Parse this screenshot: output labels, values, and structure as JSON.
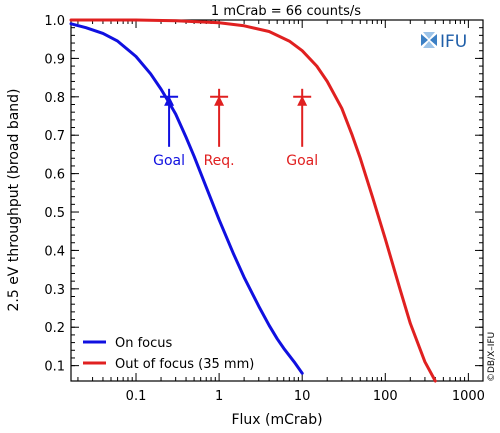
{
  "chart_data": {
    "type": "line",
    "title": "1 mCrab = 66 counts/s",
    "xlabel": "Flux (mCrab)",
    "ylabel": "2.5 eV throughput (broad band)",
    "xscale": "log",
    "xlim": [
      0.0165,
      1500
    ],
    "ylim": [
      0.06,
      1.0
    ],
    "x_ticks": [
      {
        "value": 0.1,
        "label": "0.1"
      },
      {
        "value": 1,
        "label": "1"
      },
      {
        "value": 10,
        "label": "10"
      },
      {
        "value": 100,
        "label": "100"
      },
      {
        "value": 1000,
        "label": "1000"
      }
    ],
    "y_ticks": [
      {
        "value": 0.1,
        "label": "0.1"
      },
      {
        "value": 0.2,
        "label": "0.2"
      },
      {
        "value": 0.3,
        "label": "0.3"
      },
      {
        "value": 0.4,
        "label": "0.4"
      },
      {
        "value": 0.5,
        "label": "0.5"
      },
      {
        "value": 0.6,
        "label": "0.6"
      },
      {
        "value": 0.7,
        "label": "0.7"
      },
      {
        "value": 0.8,
        "label": "0.8"
      },
      {
        "value": 0.9,
        "label": "0.9"
      },
      {
        "value": 1.0,
        "label": "1.0"
      }
    ],
    "grid": false,
    "legend_position": "bottom-left",
    "series": [
      {
        "name": "On focus",
        "color": "#1010e0",
        "x": [
          0.0165,
          0.025,
          0.04,
          0.06,
          0.1,
          0.15,
          0.2,
          0.25,
          0.3,
          0.4,
          0.5,
          0.7,
          1.0,
          1.5,
          2,
          3,
          4,
          5,
          6,
          8,
          10
        ],
        "y": [
          0.99,
          0.98,
          0.965,
          0.945,
          0.905,
          0.86,
          0.82,
          0.785,
          0.755,
          0.695,
          0.645,
          0.565,
          0.48,
          0.39,
          0.33,
          0.255,
          0.205,
          0.17,
          0.145,
          0.11,
          0.08
        ]
      },
      {
        "name": "Out of focus (35 mm)",
        "color": "#e02020",
        "x": [
          0.0165,
          0.1,
          0.3,
          1,
          2,
          4,
          7,
          10,
          15,
          20,
          30,
          40,
          50,
          70,
          100,
          150,
          200,
          300,
          400
        ],
        "y": [
          1.0,
          1.0,
          0.998,
          0.993,
          0.985,
          0.97,
          0.945,
          0.92,
          0.88,
          0.84,
          0.77,
          0.7,
          0.64,
          0.54,
          0.43,
          0.3,
          0.21,
          0.11,
          0.06
        ]
      }
    ],
    "markers": [
      {
        "label": "Goal",
        "x": 0.25,
        "y": 0.8,
        "color": "#1010e0"
      },
      {
        "label": "Req.",
        "x": 1.0,
        "y": 0.8,
        "color": "#e02020"
      },
      {
        "label": "Goal",
        "x": 10,
        "y": 0.8,
        "color": "#e02020"
      }
    ],
    "annotations": {
      "logo_text": "IFU",
      "credit": "©DB/X–IFU"
    }
  }
}
